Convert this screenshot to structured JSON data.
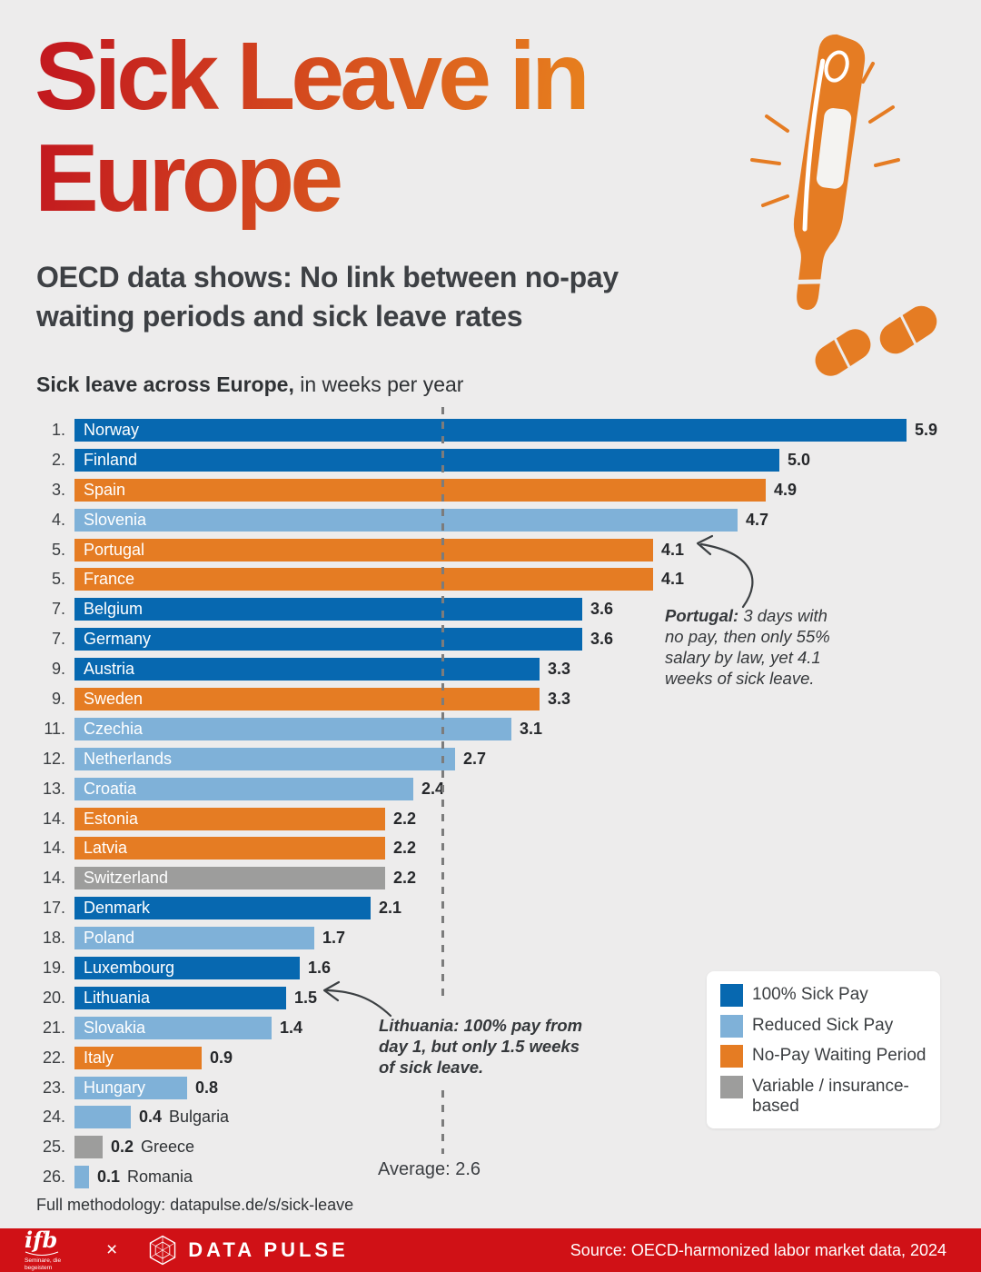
{
  "page": {
    "background": "#edecec"
  },
  "colors": {
    "title_gradient_from": "#c31a1f",
    "title_gradient_to": "#e8821e",
    "footer_red": "#d01116",
    "illustration_orange": "#e57c23",
    "average_line": "#7c7c7c",
    "bar_full_pay": "#0768b0",
    "bar_reduced_pay": "#7fb1d8",
    "bar_no_pay": "#e57c23",
    "bar_variable": "#9d9d9c"
  },
  "header": {
    "title_line1": "Sick Leave in",
    "title_line2": "Europe",
    "subtitle_line1": "OECD data shows: No link between no-pay",
    "subtitle_line2": "waiting periods and sick leave rates"
  },
  "chart": {
    "heading_bold": "Sick leave across Europe,",
    "heading_rest": " in weeks per year",
    "average_label": "Average: 2.6"
  },
  "chart_data": {
    "type": "bar",
    "orientation": "horizontal",
    "title": "Sick leave across Europe, in weeks per year",
    "unit": "weeks per year",
    "xlim": [
      0,
      5.9
    ],
    "average": 2.6,
    "grid": false,
    "legend_position": "bottom-right",
    "rows": [
      {
        "rank": "1.",
        "country": "Norway",
        "value": 5.9,
        "display": "5.9",
        "type": "full",
        "label_outside": false
      },
      {
        "rank": "2.",
        "country": "Finland",
        "value": 5.0,
        "display": "5.0",
        "type": "full",
        "label_outside": false
      },
      {
        "rank": "3.",
        "country": "Spain",
        "value": 4.9,
        "display": "4.9",
        "type": "nopay",
        "label_outside": false
      },
      {
        "rank": "4.",
        "country": "Slovenia",
        "value": 4.7,
        "display": "4.7",
        "type": "reduced",
        "label_outside": false
      },
      {
        "rank": "5.",
        "country": "Portugal",
        "value": 4.1,
        "display": "4.1",
        "type": "nopay",
        "label_outside": false
      },
      {
        "rank": "5.",
        "country": "France",
        "value": 4.1,
        "display": "4.1",
        "type": "nopay",
        "label_outside": false
      },
      {
        "rank": "7.",
        "country": "Belgium",
        "value": 3.6,
        "display": "3.6",
        "type": "full",
        "label_outside": false
      },
      {
        "rank": "7.",
        "country": "Germany",
        "value": 3.6,
        "display": "3.6",
        "type": "full",
        "label_outside": false
      },
      {
        "rank": "9.",
        "country": "Austria",
        "value": 3.3,
        "display": "3.3",
        "type": "full",
        "label_outside": false
      },
      {
        "rank": "9.",
        "country": "Sweden",
        "value": 3.3,
        "display": "3.3",
        "type": "nopay",
        "label_outside": false
      },
      {
        "rank": "11.",
        "country": "Czechia",
        "value": 3.1,
        "display": "3.1",
        "type": "reduced",
        "label_outside": false
      },
      {
        "rank": "12.",
        "country": "Netherlands",
        "value": 2.7,
        "display": "2.7",
        "type": "reduced",
        "label_outside": false
      },
      {
        "rank": "13.",
        "country": "Croatia",
        "value": 2.4,
        "display": "2.4",
        "type": "reduced",
        "label_outside": false
      },
      {
        "rank": "14.",
        "country": "Estonia",
        "value": 2.2,
        "display": "2.2",
        "type": "nopay",
        "label_outside": false
      },
      {
        "rank": "14.",
        "country": "Latvia",
        "value": 2.2,
        "display": "2.2",
        "type": "nopay",
        "label_outside": false
      },
      {
        "rank": "14.",
        "country": "Switzerland",
        "value": 2.2,
        "display": "2.2",
        "type": "variable",
        "label_outside": false
      },
      {
        "rank": "17.",
        "country": "Denmark",
        "value": 2.1,
        "display": "2.1",
        "type": "full",
        "label_outside": false
      },
      {
        "rank": "18.",
        "country": "Poland",
        "value": 1.7,
        "display": "1.7",
        "type": "reduced",
        "label_outside": false
      },
      {
        "rank": "19.",
        "country": "Luxembourg",
        "value": 1.6,
        "display": "1.6",
        "type": "full",
        "label_outside": false
      },
      {
        "rank": "20.",
        "country": "Lithuania",
        "value": 1.5,
        "display": "1.5",
        "type": "full",
        "label_outside": false
      },
      {
        "rank": "21.",
        "country": "Slovakia",
        "value": 1.4,
        "display": "1.4",
        "type": "reduced",
        "label_outside": false
      },
      {
        "rank": "22.",
        "country": "Italy",
        "value": 0.9,
        "display": "0.9",
        "type": "nopay",
        "label_outside": false
      },
      {
        "rank": "23.",
        "country": "Hungary",
        "value": 0.8,
        "display": "0.8",
        "type": "reduced",
        "label_outside": false
      },
      {
        "rank": "24.",
        "country": "Bulgaria",
        "value": 0.4,
        "display": "0.4",
        "type": "reduced",
        "label_outside": true
      },
      {
        "rank": "25.",
        "country": "Greece",
        "value": 0.2,
        "display": "0.2",
        "type": "variable",
        "label_outside": true
      },
      {
        "rank": "26.",
        "country": "Romania",
        "value": 0.1,
        "display": "0.1",
        "type": "reduced",
        "label_outside": true
      }
    ]
  },
  "legend": {
    "items": [
      {
        "type": "full",
        "label": "100% Sick Pay",
        "color": "#0768b0"
      },
      {
        "type": "reduced",
        "label": "Reduced Sick Pay",
        "color": "#7fb1d8"
      },
      {
        "type": "nopay",
        "label": "No-Pay Waiting Period",
        "color": "#e57c23"
      },
      {
        "type": "variable",
        "label": "Variable / insurance-based",
        "color": "#9d9d9c"
      }
    ]
  },
  "annotations": {
    "portugal": {
      "bold": "Portugal:",
      "text": " 3 days with no pay, then only 55% salary by law, yet 4.1 weeks of sick leave."
    },
    "lithuania": {
      "bold": "Lithuania:",
      "text": " 100% pay from day 1, but only 1.5 weeks of sick leave."
    }
  },
  "illustration": {
    "name": "thermometer-and-pills"
  },
  "footer": {
    "methodology": "Full methodology: datapulse.de/s/sick-leave",
    "ifb_name": "ifb",
    "ifb_tagline": "Seminare, die begeistern",
    "separator": "×",
    "brand": "DATA PULSE",
    "source": "Source: OECD-harmonized labor market data, 2024"
  }
}
